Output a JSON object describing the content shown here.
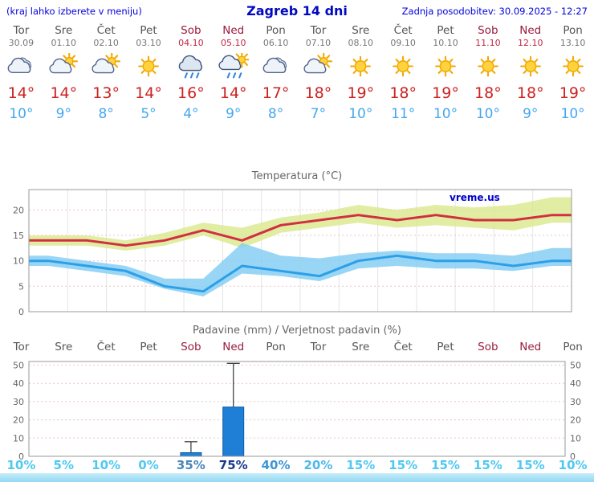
{
  "header": {
    "left_note": "(kraj lahko izberete v meniju)",
    "title": "Zagreb 14 dni",
    "updated": "Zadnja posodobitev: 30.09.2025 - 12:27"
  },
  "colors": {
    "header-blue": "#0000dd",
    "title-blue": "#0008c0",
    "weekday": "#555555",
    "weekend-day": "#9b1b3c",
    "date": "#777777",
    "weekend-date": "#c22743",
    "tmax": "#cc2222",
    "tmin": "#45a7f0",
    "chart-title": "#666666",
    "axis": "#9a9a9a",
    "axis-text": "#666666",
    "grid": "#e8c6c6",
    "vgrid": "#e4e4e4",
    "watermark": "#0000cc",
    "bar": "#1f7fd6",
    "bar-border": "#0e5ca8",
    "whisker": "#444444",
    "band-max": "#d9e98c",
    "band-min": "#7fccf3",
    "strip-top": "#c9ecf9",
    "strip-bottom": "#8fd9f3"
  },
  "days": [
    {
      "name": "Tor",
      "date": "30.09",
      "weekend": false,
      "icon": "cloudy",
      "tmax": "14°",
      "tmin": "10°",
      "prob": "10%",
      "prob_color": "#4fc9f0"
    },
    {
      "name": "Sre",
      "date": "01.10",
      "weekend": false,
      "icon": "partly-cloudy",
      "tmax": "14°",
      "tmin": "9°",
      "prob": "5%",
      "prob_color": "#4fc9f0"
    },
    {
      "name": "Čet",
      "date": "02.10",
      "weekend": false,
      "icon": "partly-cloudy",
      "tmax": "13°",
      "tmin": "8°",
      "prob": "10%",
      "prob_color": "#4fc9f0"
    },
    {
      "name": "Pet",
      "date": "03.10",
      "weekend": false,
      "icon": "sunny",
      "tmax": "14°",
      "tmin": "5°",
      "prob": "0%",
      "prob_color": "#4fc9f0"
    },
    {
      "name": "Sob",
      "date": "04.10",
      "weekend": true,
      "icon": "rain",
      "tmax": "16°",
      "tmin": "4°",
      "prob": "35%",
      "prob_color": "#4b87b8"
    },
    {
      "name": "Ned",
      "date": "05.10",
      "weekend": true,
      "icon": "rain-sun",
      "tmax": "14°",
      "tmin": "9°",
      "prob": "75%",
      "prob_color": "#1c3b8e"
    },
    {
      "name": "Pon",
      "date": "06.10",
      "weekend": false,
      "icon": "cloudy",
      "tmax": "17°",
      "tmin": "8°",
      "prob": "40%",
      "prob_color": "#3d95d6"
    },
    {
      "name": "Tor",
      "date": "07.10",
      "weekend": false,
      "icon": "partly-cloudy",
      "tmax": "18°",
      "tmin": "7°",
      "prob": "20%",
      "prob_color": "#4fb9e8"
    },
    {
      "name": "Sre",
      "date": "08.10",
      "weekend": false,
      "icon": "sunny",
      "tmax": "19°",
      "tmin": "10°",
      "prob": "15%",
      "prob_color": "#4fc9f0"
    },
    {
      "name": "Čet",
      "date": "09.10",
      "weekend": false,
      "icon": "sunny",
      "tmax": "18°",
      "tmin": "11°",
      "prob": "15%",
      "prob_color": "#4fc9f0"
    },
    {
      "name": "Pet",
      "date": "10.10",
      "weekend": false,
      "icon": "sunny",
      "tmax": "19°",
      "tmin": "10°",
      "prob": "15%",
      "prob_color": "#4fc9f0"
    },
    {
      "name": "Sob",
      "date": "11.10",
      "weekend": true,
      "icon": "sunny",
      "tmax": "18°",
      "tmin": "10°",
      "prob": "15%",
      "prob_color": "#4fc9f0"
    },
    {
      "name": "Ned",
      "date": "12.10",
      "weekend": true,
      "icon": "sunny",
      "tmax": "18°",
      "tmin": "9°",
      "prob": "15%",
      "prob_color": "#4fc9f0"
    },
    {
      "name": "Pon",
      "date": "13.10",
      "weekend": false,
      "icon": "sunny",
      "tmax": "19°",
      "tmin": "10°",
      "prob": "10%",
      "prob_color": "#4fc9f0"
    }
  ],
  "chart_data": [
    {
      "type": "line",
      "title": "Temperatura (°C)",
      "watermark": "vreme.us",
      "categories": [
        "Tor 30.09",
        "Sre 01.10",
        "Čet 02.10",
        "Pet 03.10",
        "Sob 04.10",
        "Ned 05.10",
        "Pon 06.10",
        "Tor 07.10",
        "Sre 08.10",
        "Čet 09.10",
        "Pet 10.10",
        "Sob 11.10",
        "Ned 12.10",
        "Pon 13.10"
      ],
      "ylim": [
        0,
        24
      ],
      "yticks": [
        0,
        5,
        10,
        15,
        20
      ],
      "series": [
        {
          "name": "tmax",
          "color": "#d03040",
          "values": [
            14,
            14,
            13,
            14,
            16,
            14,
            17,
            18,
            19,
            18,
            19,
            18,
            18,
            19
          ]
        },
        {
          "name": "tmin",
          "color": "#2d9fe8",
          "values": [
            10,
            9,
            8,
            5,
            4,
            9,
            8,
            7,
            10,
            11,
            10,
            10,
            9,
            10
          ]
        },
        {
          "name": "tmax_range_upper",
          "values": [
            15,
            15,
            14,
            15.5,
            17.5,
            16.5,
            18.5,
            19.5,
            21,
            20,
            21,
            20.5,
            21,
            22.5
          ]
        },
        {
          "name": "tmax_range_lower",
          "values": [
            13,
            13,
            12,
            13,
            15,
            12.5,
            15.5,
            16.5,
            17.5,
            16.5,
            17,
            16.5,
            16,
            17.5
          ]
        },
        {
          "name": "tmin_range_upper",
          "values": [
            11,
            10,
            9,
            6.5,
            6.5,
            13.5,
            11,
            10.5,
            11.5,
            12,
            11.5,
            11.5,
            11,
            12.5
          ]
        },
        {
          "name": "tmin_range_lower",
          "values": [
            9,
            8,
            7,
            4.5,
            3,
            7.5,
            7,
            6,
            8.5,
            9,
            8.5,
            8.5,
            8,
            9
          ]
        }
      ]
    },
    {
      "type": "bar",
      "title": "Padavine (mm) / Verjetnost padavin (%)",
      "categories": [
        "Tor",
        "Sre",
        "Čet",
        "Pet",
        "Sob",
        "Ned",
        "Pon",
        "Tor",
        "Sre",
        "Čet",
        "Pet",
        "Sob",
        "Ned",
        "Pon"
      ],
      "ylim": [
        0,
        52
      ],
      "yticks": [
        0,
        10,
        20,
        30,
        40,
        50
      ],
      "precipitation_mm": [
        0,
        0,
        0,
        0,
        2,
        27,
        0,
        0,
        0,
        0,
        0,
        0,
        0,
        0
      ],
      "range_max_mm": [
        0,
        0,
        0,
        0,
        8,
        51,
        0,
        0,
        0,
        0,
        0,
        0,
        0,
        0
      ],
      "probability_pct": [
        10,
        5,
        10,
        0,
        35,
        75,
        40,
        20,
        15,
        15,
        15,
        15,
        15,
        10
      ]
    }
  ]
}
